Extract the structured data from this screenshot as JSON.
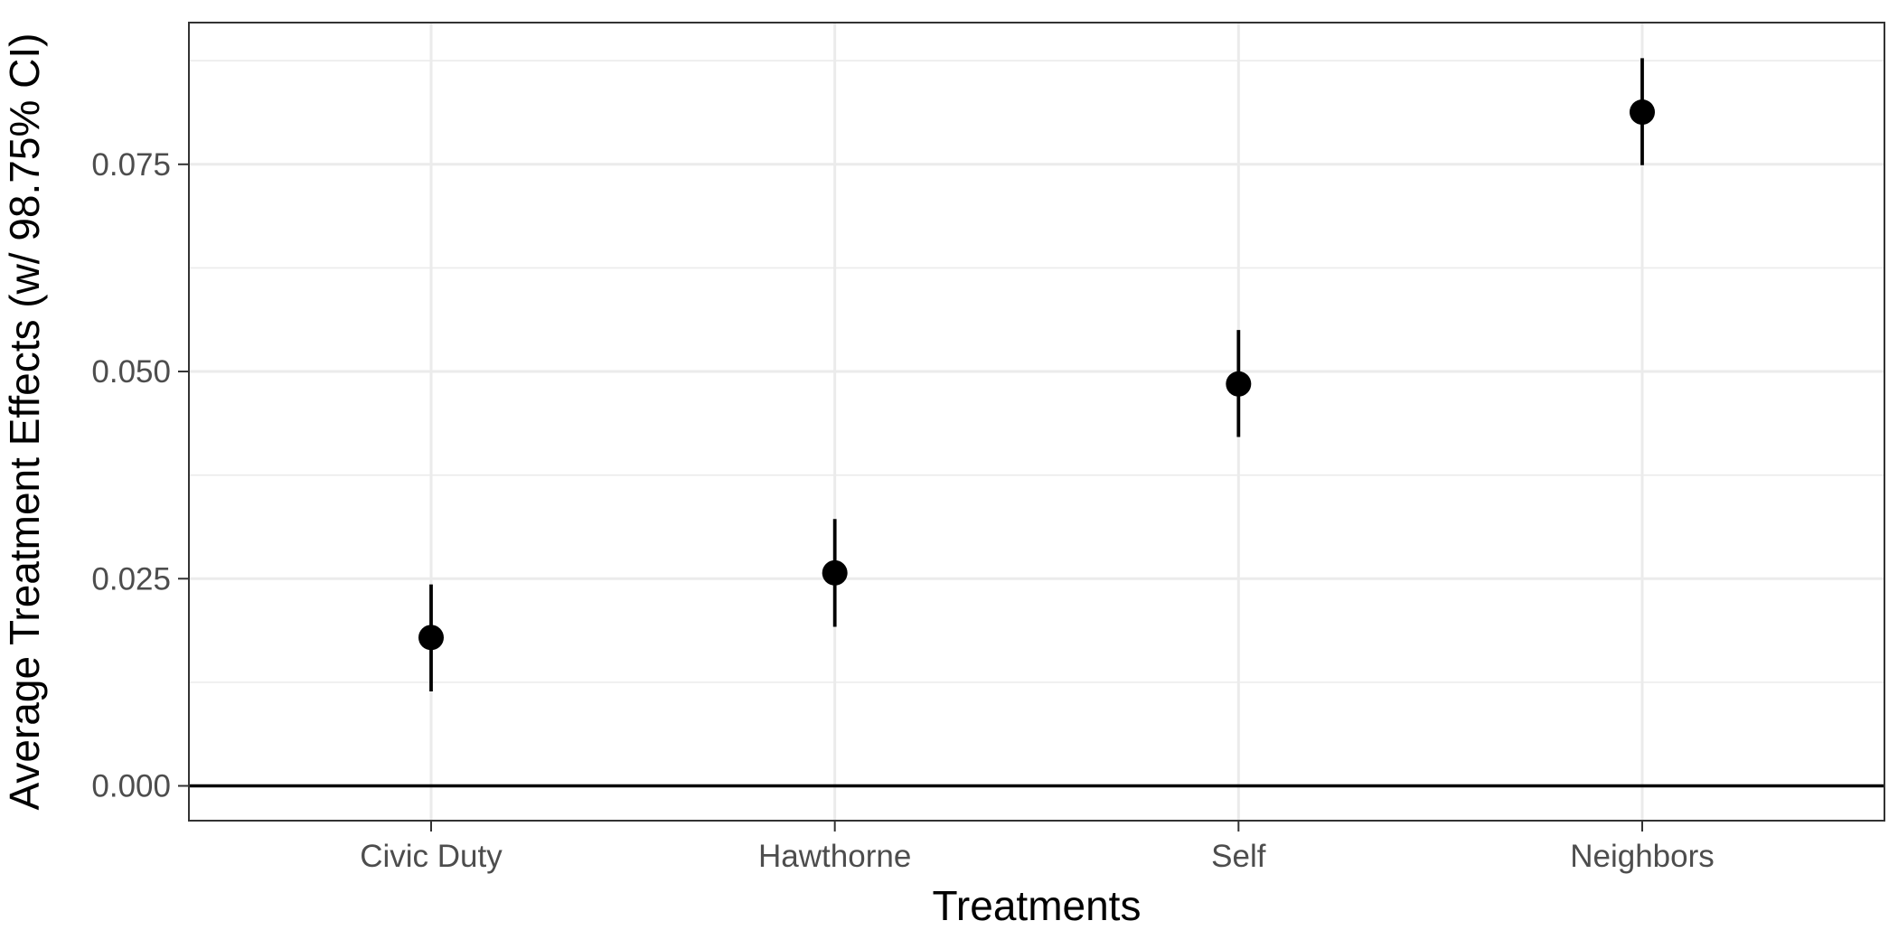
{
  "chart_data": {
    "type": "scatter",
    "title": "",
    "xlabel": "Treatments",
    "ylabel": "Average Treatment Effects (w/ 98.75% CI)",
    "categories": [
      "Civic Duty",
      "Hawthorne",
      "Self",
      "Neighbors"
    ],
    "estimates": [
      0.0179,
      0.0257,
      0.0485,
      0.0813
    ],
    "ci_lower": [
      0.0114,
      0.0192,
      0.0421,
      0.0749
    ],
    "ci_upper": [
      0.0243,
      0.0322,
      0.055,
      0.0878
    ],
    "ylim": [
      -0.0042,
      0.0921
    ],
    "yticks": [
      0.0,
      0.025,
      0.05,
      0.075
    ],
    "ytick_labels": [
      "0.000",
      "0.025",
      "0.050",
      "0.075"
    ],
    "reference_line": 0,
    "grid": true,
    "legend": "none",
    "colors": {
      "point": "#000000",
      "grid": "#ebebeb",
      "panel_border": "#333333",
      "reference_line": "#000000"
    }
  }
}
